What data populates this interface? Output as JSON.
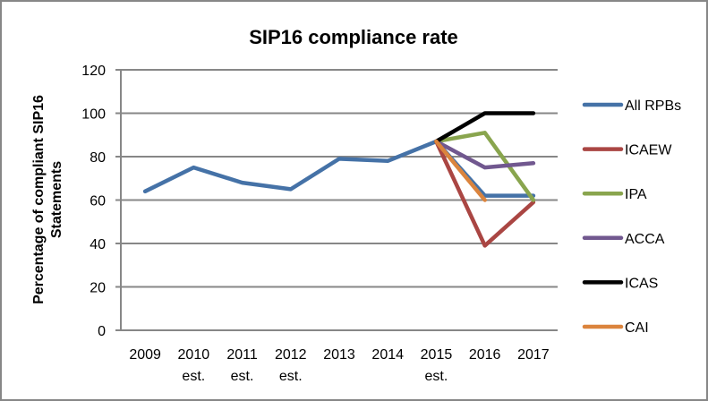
{
  "chart_data": {
    "type": "line",
    "title": "SIP16 compliance rate",
    "xlabel": "",
    "ylabel": "Percentage of compliant SIP16 Statements",
    "ylabel_lines": [
      "Percentage of compliant SIP16",
      "Statements"
    ],
    "ylim": [
      0,
      120
    ],
    "yticks": [
      0,
      20,
      40,
      60,
      80,
      100,
      120
    ],
    "grid": true,
    "legend_position": "right",
    "categories": [
      [
        "2009"
      ],
      [
        "2010",
        "est."
      ],
      [
        "2011",
        "est."
      ],
      [
        "2012",
        "est."
      ],
      [
        "2013"
      ],
      [
        "2014"
      ],
      [
        "2015",
        "est."
      ],
      [
        "2016"
      ],
      [
        "2017"
      ]
    ],
    "series": [
      {
        "name": "All RPBs",
        "color": "#4572A7",
        "values": [
          64,
          75,
          68,
          65,
          79,
          78,
          87,
          62,
          62
        ]
      },
      {
        "name": "ICAEW",
        "color": "#AA4643",
        "values": [
          null,
          null,
          null,
          null,
          null,
          null,
          87,
          39,
          59
        ]
      },
      {
        "name": "IPA",
        "color": "#89A54E",
        "values": [
          null,
          null,
          null,
          null,
          null,
          null,
          87,
          91,
          60
        ]
      },
      {
        "name": "ACCA",
        "color": "#71588F",
        "values": [
          null,
          null,
          null,
          null,
          null,
          null,
          87,
          75,
          77
        ]
      },
      {
        "name": "ICAS",
        "color": "#000000",
        "values": [
          null,
          null,
          null,
          null,
          null,
          null,
          87,
          100,
          100
        ]
      },
      {
        "name": "CAI",
        "color": "#DB843D",
        "values": [
          null,
          null,
          null,
          null,
          null,
          null,
          87,
          60,
          null
        ]
      }
    ]
  }
}
